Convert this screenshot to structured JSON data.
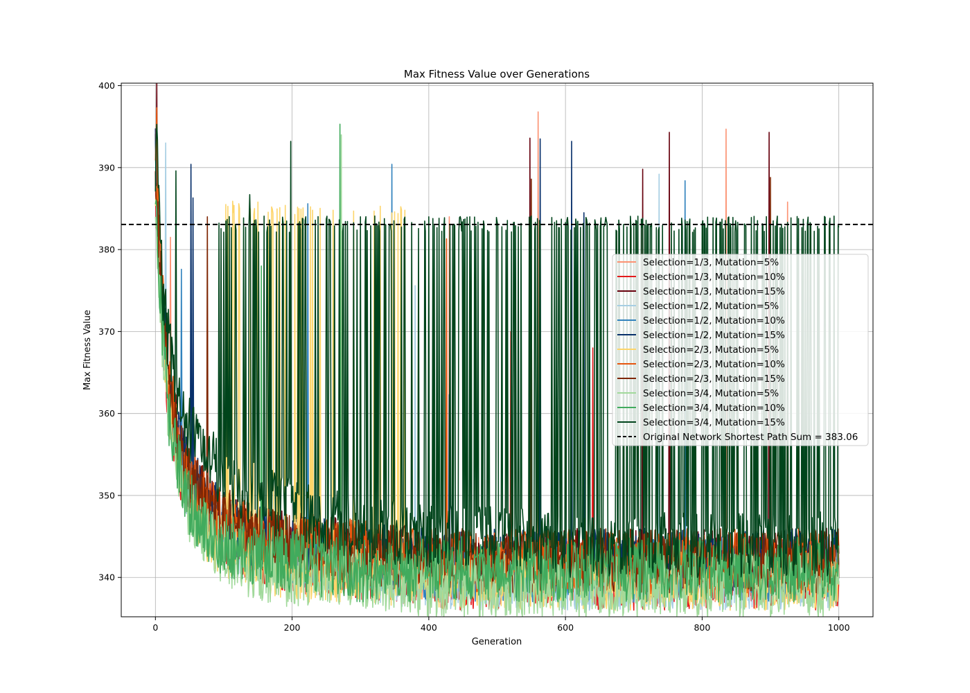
{
  "chart_data": {
    "type": "line",
    "title": "Max Fitness Value over Generations",
    "xlabel": "Generation",
    "ylabel": "Max Fitness Value",
    "xlim": [
      -50,
      1050
    ],
    "ylim": [
      335.2,
      400.3
    ],
    "xticks": [
      0,
      200,
      400,
      600,
      800,
      1000
    ],
    "yticks": [
      340,
      350,
      360,
      370,
      380,
      390,
      400
    ],
    "grid": true,
    "legend_position": "center-right",
    "reference_line": {
      "label": "Original Network Shortest Path Sum = 383.06",
      "y": 383.06,
      "color": "#000000",
      "style": "dashed"
    },
    "series": [
      {
        "name": "Selection=1/3, Mutation=5%",
        "color": "#fc9272",
        "points": [
          [
            0,
            390
          ],
          [
            3,
            383
          ],
          [
            10,
            372
          ],
          [
            20,
            362
          ],
          [
            35,
            355
          ],
          [
            50,
            351
          ],
          [
            75,
            348
          ],
          [
            100,
            346
          ],
          [
            150,
            344
          ],
          [
            200,
            343
          ],
          [
            300,
            342
          ],
          [
            400,
            341
          ],
          [
            500,
            341
          ],
          [
            600,
            341
          ],
          [
            700,
            341
          ],
          [
            800,
            341
          ],
          [
            900,
            341
          ],
          [
            1000,
            341
          ]
        ],
        "spikes": [
          [
            22,
            381.5
          ],
          [
            430,
            384
          ],
          [
            560,
            396.8
          ],
          [
            835,
            394.7
          ],
          [
            925,
            385.8
          ]
        ]
      },
      {
        "name": "Selection=1/3, Mutation=10%",
        "color": "#e41a1c",
        "points": [
          [
            0,
            388
          ],
          [
            3,
            382
          ],
          [
            10,
            371
          ],
          [
            20,
            361
          ],
          [
            35,
            354
          ],
          [
            50,
            350
          ],
          [
            75,
            347
          ],
          [
            100,
            345
          ],
          [
            150,
            343
          ],
          [
            200,
            342
          ],
          [
            300,
            341
          ],
          [
            400,
            340
          ],
          [
            500,
            340
          ],
          [
            600,
            340
          ],
          [
            700,
            340
          ],
          [
            800,
            340
          ],
          [
            900,
            340
          ],
          [
            1000,
            340
          ]
        ],
        "spikes": [
          [
            520,
            370
          ],
          [
            640,
            368
          ]
        ]
      },
      {
        "name": "Selection=1/3, Mutation=15%",
        "color": "#67000d",
        "points": [
          [
            0,
            392
          ],
          [
            3,
            385
          ],
          [
            10,
            373
          ],
          [
            20,
            363
          ],
          [
            35,
            356
          ],
          [
            50,
            352
          ],
          [
            75,
            349
          ],
          [
            100,
            347
          ],
          [
            150,
            345
          ],
          [
            200,
            344
          ],
          [
            300,
            343
          ],
          [
            400,
            342
          ],
          [
            500,
            342
          ],
          [
            600,
            342
          ],
          [
            700,
            342
          ],
          [
            800,
            342
          ],
          [
            900,
            342
          ],
          [
            1000,
            342
          ]
        ],
        "spikes": [
          [
            2,
            400.3
          ],
          [
            548,
            393.6
          ],
          [
            713,
            389.8
          ],
          [
            752,
            394.3
          ],
          [
            898,
            394.3
          ]
        ]
      },
      {
        "name": "Selection=1/2, Mutation=5%",
        "color": "#a6cee3",
        "points": [
          [
            0,
            389
          ],
          [
            3,
            382
          ],
          [
            10,
            371
          ],
          [
            20,
            361
          ],
          [
            35,
            354
          ],
          [
            50,
            350
          ],
          [
            75,
            347
          ],
          [
            100,
            345
          ],
          [
            150,
            343
          ],
          [
            200,
            342
          ],
          [
            300,
            341
          ],
          [
            400,
            340
          ],
          [
            500,
            340
          ],
          [
            600,
            340
          ],
          [
            700,
            340
          ],
          [
            800,
            340
          ],
          [
            900,
            340
          ],
          [
            1000,
            340
          ]
        ],
        "spikes": [
          [
            15,
            393
          ],
          [
            380,
            375.6
          ],
          [
            737,
            389.2
          ]
        ]
      },
      {
        "name": "Selection=1/2, Mutation=10%",
        "color": "#3182bd",
        "points": [
          [
            0,
            390
          ],
          [
            3,
            383
          ],
          [
            10,
            372
          ],
          [
            20,
            362
          ],
          [
            35,
            355
          ],
          [
            50,
            351
          ],
          [
            75,
            348
          ],
          [
            100,
            346
          ],
          [
            150,
            344
          ],
          [
            200,
            343
          ],
          [
            300,
            342
          ],
          [
            400,
            341
          ],
          [
            500,
            341
          ],
          [
            600,
            341
          ],
          [
            700,
            341
          ],
          [
            800,
            341
          ],
          [
            900,
            341
          ],
          [
            1000,
            341
          ]
        ],
        "spikes": [
          [
            38,
            377.6
          ],
          [
            150,
            371.4
          ],
          [
            223,
            385.6
          ],
          [
            346,
            390.4
          ],
          [
            775,
            388.4
          ]
        ]
      },
      {
        "name": "Selection=1/2, Mutation=15%",
        "color": "#08306b",
        "points": [
          [
            0,
            391
          ],
          [
            3,
            384
          ],
          [
            10,
            373
          ],
          [
            20,
            363
          ],
          [
            35,
            356
          ],
          [
            50,
            352
          ],
          [
            75,
            349
          ],
          [
            100,
            347
          ],
          [
            150,
            345
          ],
          [
            200,
            344
          ],
          [
            300,
            343
          ],
          [
            400,
            342
          ],
          [
            500,
            342
          ],
          [
            600,
            342
          ],
          [
            700,
            342
          ],
          [
            800,
            342
          ],
          [
            900,
            342
          ],
          [
            1000,
            342
          ]
        ],
        "spikes": [
          [
            52,
            390.4
          ],
          [
            55,
            386.3
          ],
          [
            430,
            362.3
          ],
          [
            435,
            365.2
          ],
          [
            563,
            393.5
          ],
          [
            609,
            393.2
          ],
          [
            627,
            384.5
          ]
        ]
      },
      {
        "name": "Selection=2/3, Mutation=5%",
        "color": "#fdd56a",
        "points": [
          [
            0,
            389
          ],
          [
            3,
            382
          ],
          [
            10,
            371
          ],
          [
            20,
            361
          ],
          [
            35,
            354
          ],
          [
            50,
            349
          ],
          [
            75,
            346
          ],
          [
            100,
            344
          ],
          [
            150,
            342
          ],
          [
            200,
            341
          ],
          [
            300,
            341
          ],
          [
            400,
            340
          ],
          [
            500,
            340
          ],
          [
            600,
            340
          ],
          [
            700,
            340
          ],
          [
            800,
            340
          ],
          [
            900,
            340
          ],
          [
            1000,
            340
          ]
        ],
        "spikes": [
          [
            103,
            385.5
          ],
          [
            113,
            385.9
          ],
          [
            122,
            385.6
          ],
          [
            150,
            385.8
          ],
          [
            170,
            385.2
          ],
          [
            190,
            385.4
          ],
          [
            210,
            385
          ],
          [
            230,
            384.8
          ],
          [
            260,
            384.8
          ],
          [
            290,
            384.7
          ],
          [
            320,
            384.7
          ],
          [
            350,
            384.6
          ],
          [
            365,
            384.8
          ]
        ]
      },
      {
        "name": "Selection=2/3, Mutation=10%",
        "color": "#e6550d",
        "points": [
          [
            0,
            394
          ],
          [
            3,
            386
          ],
          [
            10,
            374
          ],
          [
            20,
            364
          ],
          [
            35,
            356
          ],
          [
            50,
            352
          ],
          [
            75,
            349
          ],
          [
            100,
            347
          ],
          [
            150,
            345
          ],
          [
            200,
            344
          ],
          [
            300,
            343
          ],
          [
            400,
            342
          ],
          [
            500,
            342
          ],
          [
            600,
            342
          ],
          [
            700,
            342
          ],
          [
            800,
            342
          ],
          [
            900,
            342
          ],
          [
            1000,
            342
          ]
        ],
        "spikes": [
          [
            2,
            397.3
          ],
          [
            426,
            381.3
          ]
        ]
      },
      {
        "name": "Selection=2/3, Mutation=15%",
        "color": "#7f2704",
        "points": [
          [
            0,
            392
          ],
          [
            3,
            385
          ],
          [
            10,
            373
          ],
          [
            20,
            363
          ],
          [
            35,
            356
          ],
          [
            50,
            352
          ],
          [
            75,
            349
          ],
          [
            100,
            347
          ],
          [
            150,
            345
          ],
          [
            200,
            344
          ],
          [
            300,
            343
          ],
          [
            400,
            342
          ],
          [
            500,
            342
          ],
          [
            600,
            342
          ],
          [
            700,
            342
          ],
          [
            800,
            342
          ],
          [
            900,
            342
          ],
          [
            1000,
            342
          ]
        ],
        "spikes": [
          [
            76,
            384
          ],
          [
            550,
            388.6
          ],
          [
            900,
            388.8
          ]
        ]
      },
      {
        "name": "Selection=3/4, Mutation=5%",
        "color": "#a1d99b",
        "points": [
          [
            0,
            386
          ],
          [
            3,
            380
          ],
          [
            10,
            369
          ],
          [
            20,
            359
          ],
          [
            35,
            352
          ],
          [
            50,
            348
          ],
          [
            75,
            345
          ],
          [
            100,
            343
          ],
          [
            150,
            341
          ],
          [
            200,
            340
          ],
          [
            300,
            340
          ],
          [
            400,
            339
          ],
          [
            500,
            339
          ],
          [
            600,
            339
          ],
          [
            700,
            339
          ],
          [
            800,
            339
          ],
          [
            900,
            339
          ],
          [
            1000,
            339
          ]
        ],
        "spikes": [
          [
            272,
            394
          ]
        ]
      },
      {
        "name": "Selection=3/4, Mutation=10%",
        "color": "#41ab5d",
        "points": [
          [
            0,
            387
          ],
          [
            3,
            381
          ],
          [
            10,
            370
          ],
          [
            20,
            360
          ],
          [
            35,
            353
          ],
          [
            50,
            349
          ],
          [
            75,
            346
          ],
          [
            100,
            344
          ],
          [
            150,
            343
          ],
          [
            200,
            342
          ],
          [
            300,
            341
          ],
          [
            400,
            341
          ],
          [
            500,
            341
          ],
          [
            600,
            341
          ],
          [
            700,
            341
          ],
          [
            800,
            341
          ],
          [
            900,
            341
          ],
          [
            1000,
            341
          ]
        ],
        "spikes": [
          [
            270,
            395.3
          ],
          [
            155,
            378
          ]
        ]
      },
      {
        "name": "Selection=3/4, Mutation=15%",
        "color": "#00441b",
        "points": [
          [
            0,
            388
          ],
          [
            3,
            393.6
          ],
          [
            10,
            376
          ],
          [
            20,
            368
          ],
          [
            35,
            362
          ],
          [
            50,
            358
          ],
          [
            75,
            355
          ],
          [
            100,
            352
          ],
          [
            150,
            350
          ],
          [
            200,
            348
          ],
          [
            300,
            346
          ],
          [
            400,
            345
          ],
          [
            500,
            345
          ],
          [
            600,
            344
          ],
          [
            700,
            344
          ],
          [
            800,
            344
          ],
          [
            900,
            344
          ],
          [
            1000,
            344
          ]
        ],
        "spikes": [
          [
            30,
            389.6
          ],
          [
            138,
            386.7
          ],
          [
            198,
            393.2
          ],
          [
            220,
            384
          ],
          [
            300,
            384
          ],
          [
            400,
            384
          ],
          [
            460,
            384
          ],
          [
            500,
            383.4
          ],
          [
            600,
            383.3
          ],
          [
            700,
            383.2
          ],
          [
            800,
            383.1
          ],
          [
            900,
            383
          ],
          [
            1000,
            382.7
          ]
        ]
      }
    ]
  }
}
